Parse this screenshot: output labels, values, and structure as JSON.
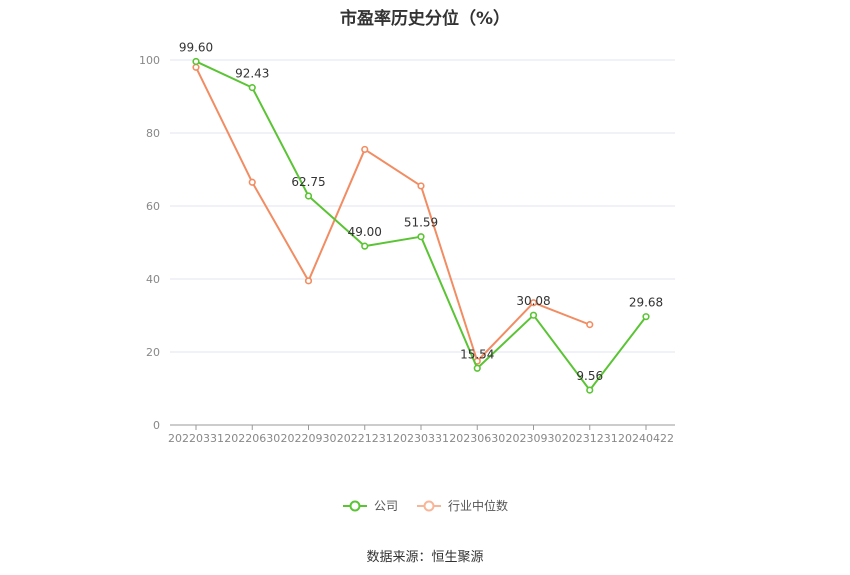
{
  "chart_data": {
    "type": "line",
    "title": "市盈率历史分位（%）",
    "categories": [
      "20220331",
      "20220630",
      "20220930",
      "20221231",
      "20230331",
      "20230630",
      "20230930",
      "20231231",
      "20240422"
    ],
    "series": [
      {
        "name": "公司",
        "color": "#5ac434",
        "values": [
          99.6,
          92.43,
          62.75,
          49.0,
          51.59,
          15.54,
          30.08,
          9.56,
          29.68
        ],
        "labels": [
          "99.60",
          "92.43",
          "62.75",
          "49.00",
          "51.59",
          "15.54",
          "30.08",
          "9.56",
          "29.68"
        ]
      },
      {
        "name": "行业中位数",
        "color": "#f28c62",
        "values": [
          98.0,
          66.5,
          39.5,
          75.5,
          65.5,
          17.5,
          33.5,
          27.5,
          null
        ]
      }
    ],
    "yticks": [
      "0",
      "20",
      "40",
      "60",
      "80",
      "100"
    ],
    "ylim": [
      0,
      100
    ],
    "grid": true,
    "legend": "bottom-center"
  },
  "source": "数据来源：恒生聚源"
}
